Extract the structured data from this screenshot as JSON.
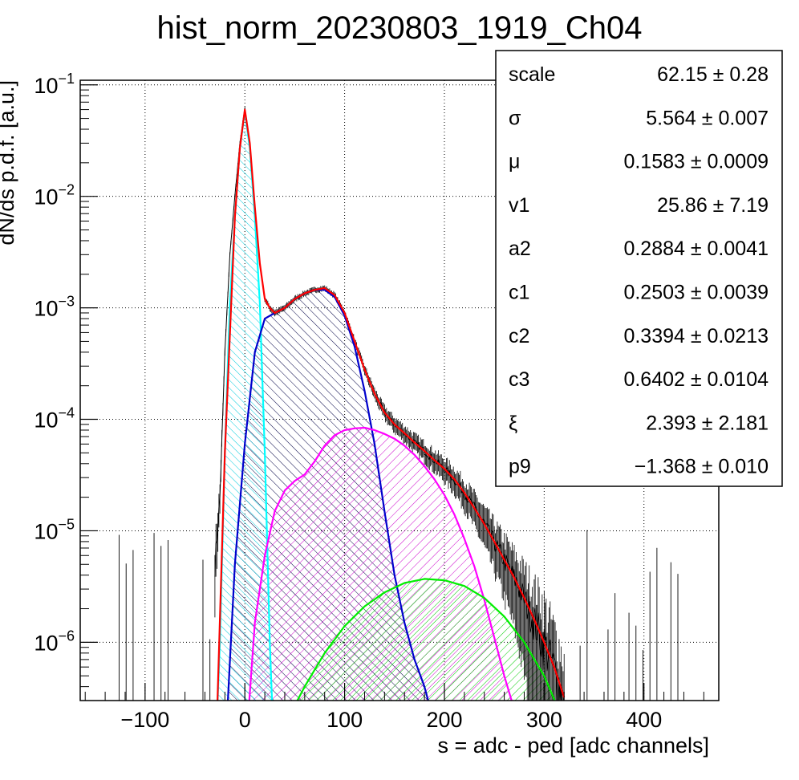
{
  "chart_data": {
    "type": "line",
    "title": "hist_norm_20230803_1919_Ch04",
    "xlabel": "s = adc - ped [adc channels]",
    "ylabel": "dN/ds p.d.f. [a.u.]",
    "xlim": [
      -165,
      475
    ],
    "ylim": [
      3e-07,
      0.11
    ],
    "yscale": "log",
    "grid": true,
    "x_ticks": [
      {
        "v": -100,
        "label": "−100"
      },
      {
        "v": 0,
        "label": "0"
      },
      {
        "v": 100,
        "label": "100"
      },
      {
        "v": 200,
        "label": "200"
      },
      {
        "v": 300,
        "label": "300"
      },
      {
        "v": 400,
        "label": "400"
      }
    ],
    "y_ticks": [
      {
        "v": 1e-06,
        "mant": "10",
        "exp": "−6"
      },
      {
        "v": 1e-05,
        "mant": "10",
        "exp": "−5"
      },
      {
        "v": 0.0001,
        "mant": "10",
        "exp": "−4"
      },
      {
        "v": 0.001,
        "mant": "10",
        "exp": "−3"
      },
      {
        "v": 0.01,
        "mant": "10",
        "exp": "−2"
      },
      {
        "v": 0.1,
        "mant": "10",
        "exp": "−1"
      }
    ],
    "series": [
      {
        "color": "#ff0000",
        "kind": "total-fit",
        "x": [
          -28,
          -20,
          -10,
          -5,
          0,
          5,
          10,
          15,
          20,
          25,
          30,
          40,
          50,
          60,
          70,
          80,
          90,
          100,
          110,
          120,
          130,
          140,
          150,
          160,
          170,
          180,
          190,
          200,
          210,
          220,
          230,
          240,
          250,
          260,
          270,
          280,
          290,
          300,
          310,
          320
        ],
        "y": [
          2e-07,
          5e-05,
          0.0065,
          0.027,
          0.06,
          0.03,
          0.008,
          0.0025,
          0.0012,
          0.001,
          0.0009,
          0.001,
          0.0012,
          0.00135,
          0.00145,
          0.0015,
          0.0013,
          0.0009,
          0.0005,
          0.00028,
          0.00017,
          0.000115,
          9e-05,
          7.5e-05,
          6.2e-05,
          5.2e-05,
          4.3e-05,
          3.6e-05,
          2.9e-05,
          2.2e-05,
          1.6e-05,
          1.15e-05,
          8e-06,
          5.5e-06,
          3.8e-06,
          2.5e-06,
          1.6e-06,
          1e-06,
          6e-07,
          3.2e-07
        ]
      },
      {
        "color": "#00ffff",
        "kind": "pedestal-component",
        "x": [
          -28,
          -25,
          -20,
          -15,
          -10,
          -5,
          0,
          5,
          10,
          15,
          20,
          25,
          28
        ],
        "y": [
          2e-07,
          1e-06,
          5e-05,
          0.0011,
          0.0065,
          0.027,
          0.058,
          0.027,
          0.0065,
          0.0011,
          5e-05,
          1e-06,
          2e-07
        ]
      },
      {
        "color": "#0000cc",
        "kind": "1pe-component",
        "x": [
          -18,
          -10,
          0,
          10,
          20,
          30,
          40,
          50,
          60,
          70,
          80,
          90,
          100,
          110,
          120,
          130,
          140,
          150,
          160,
          170,
          180,
          186
        ],
        "y": [
          2e-07,
          5e-06,
          6e-05,
          0.0004,
          0.0008,
          0.0009,
          0.001,
          0.0012,
          0.00135,
          0.00145,
          0.00145,
          0.00125,
          0.00085,
          0.00045,
          0.00018,
          6e-05,
          1.5e-05,
          4e-06,
          1.5e-06,
          7e-07,
          4e-07,
          2.5e-07
        ]
      },
      {
        "color": "#ff00ff",
        "kind": "2pe-component",
        "x": [
          3,
          10,
          20,
          30,
          40,
          50,
          60,
          70,
          80,
          90,
          100,
          110,
          120,
          130,
          140,
          150,
          160,
          170,
          180,
          190,
          200,
          210,
          220,
          230,
          240,
          250,
          260,
          270,
          276
        ],
        "y": [
          2e-07,
          1.5e-06,
          6e-06,
          1.5e-05,
          2.3e-05,
          2.8e-05,
          3.2e-05,
          4.2e-05,
          5.8e-05,
          7.2e-05,
          8e-05,
          8.3e-05,
          8.4e-05,
          8e-05,
          7.4e-05,
          6.7e-05,
          5.8e-05,
          4.8e-05,
          3.8e-05,
          2.9e-05,
          2.1e-05,
          1.4e-05,
          8.5e-06,
          4.8e-06,
          2.4e-06,
          1.1e-06,
          5e-07,
          2.5e-07,
          1.8e-07
        ]
      },
      {
        "color": "#00ee00",
        "kind": "3pe-component",
        "x": [
          48,
          60,
          80,
          100,
          120,
          140,
          160,
          180,
          200,
          220,
          240,
          260,
          280,
          300,
          312
        ],
        "y": [
          2.5e-07,
          4e-07,
          8e-07,
          1.4e-06,
          2.1e-06,
          2.8e-06,
          3.4e-06,
          3.7e-06,
          3.6e-06,
          3.2e-06,
          2.5e-06,
          1.7e-06,
          1e-06,
          5e-07,
          2.8e-07
        ]
      }
    ],
    "histogram": {
      "color": "#000000",
      "x": [
        -30,
        -25,
        -20,
        -15,
        -10,
        -5,
        0,
        5,
        10,
        15,
        20,
        25,
        30,
        40,
        50,
        60,
        70,
        80,
        90,
        100,
        110,
        120,
        130,
        140,
        150,
        160,
        170,
        180,
        190,
        200,
        210,
        220,
        230,
        240,
        250,
        260,
        270,
        280,
        290,
        300,
        310,
        320
      ],
      "y": [
        5e-06,
        2e-05,
        0.0004,
        0.003,
        0.01,
        0.03,
        0.062,
        0.03,
        0.008,
        0.0025,
        0.0012,
        0.001,
        0.0009,
        0.001,
        0.0012,
        0.00135,
        0.00145,
        0.0015,
        0.0013,
        0.0009,
        0.0005,
        0.00028,
        0.00017,
        0.000115,
        9e-05,
        7.5e-05,
        6.2e-05,
        5.2e-05,
        4.3e-05,
        3.6e-05,
        2.9e-05,
        2.2e-05,
        1.6e-05,
        1.15e-05,
        8e-06,
        5.5e-06,
        3.8e-06,
        2.5e-06,
        1.6e-06,
        1e-06,
        6e-07,
        3.2e-07
      ]
    },
    "fit_parameters": [
      {
        "name": "scale",
        "value": "62.15 ± 0.28"
      },
      {
        "name": "σ",
        "value": "5.564 ± 0.007"
      },
      {
        "name": "μ",
        "value": "0.1583 ± 0.0009"
      },
      {
        "name": "v1",
        "value": "25.86 ± 7.19"
      },
      {
        "name": "a2",
        "value": "0.2884 ± 0.0041"
      },
      {
        "name": "c1",
        "value": "0.2503 ± 0.0039"
      },
      {
        "name": "c2",
        "value": "0.3394 ± 0.0213"
      },
      {
        "name": "c3",
        "value": "0.6402 ± 0.0104"
      },
      {
        "name": "ξ",
        "value": "2.393 ± 2.181"
      },
      {
        "name": "p9",
        "value": "−1.368 ± 0.010"
      }
    ]
  }
}
